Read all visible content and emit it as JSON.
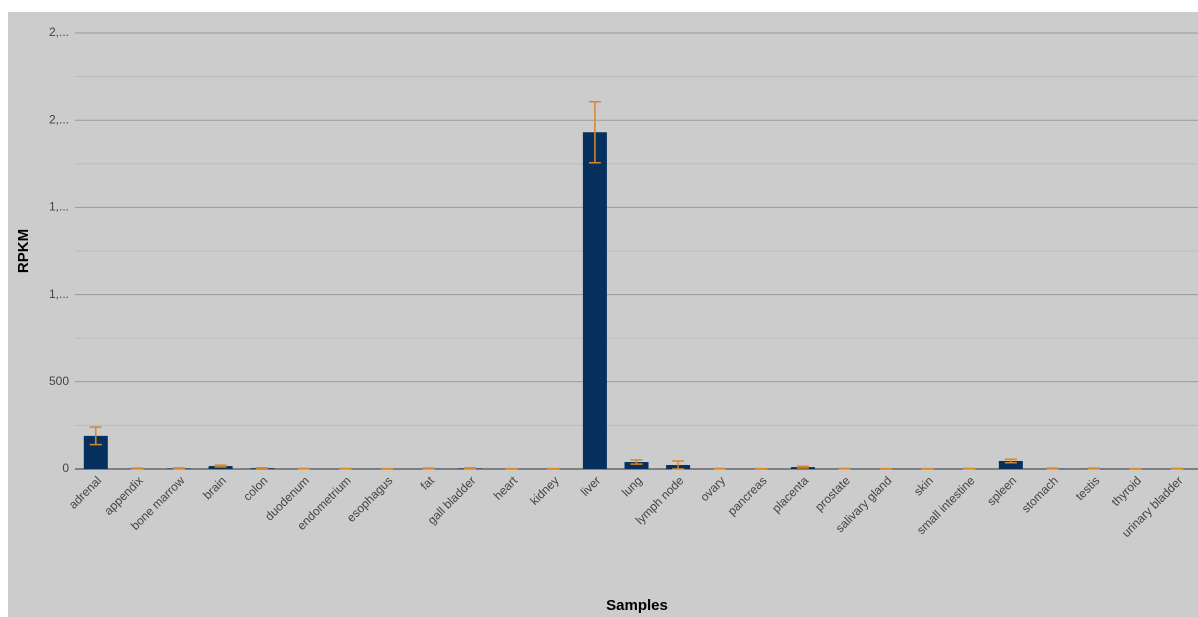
{
  "chart_data": {
    "type": "bar",
    "y_label": "RPKM",
    "x_label": "Samples",
    "categories": [
      "adrenal",
      "appendix",
      "bone marrow",
      "brain",
      "colon",
      "duodenum",
      "endometrium",
      "esophagus",
      "fat",
      "gall bladder",
      "heart",
      "kidney",
      "liver",
      "lung",
      "lymph node",
      "ovary",
      "pancreas",
      "placenta",
      "prostate",
      "salivary gland",
      "skin",
      "small intestine",
      "spleen",
      "stomach",
      "testis",
      "thyroid",
      "urinary bladder"
    ],
    "values": [
      190,
      3,
      4,
      17,
      5,
      2,
      2,
      1,
      3,
      4,
      1,
      1,
      1931,
      40,
      23,
      2,
      1,
      11,
      2,
      1,
      1,
      2,
      46,
      3,
      3,
      1,
      2
    ],
    "errors": [
      50,
      2,
      2,
      5,
      2,
      1,
      1,
      1,
      2,
      2,
      1,
      1,
      175,
      12,
      23,
      1,
      1,
      5,
      1,
      1,
      1,
      1,
      10,
      2,
      2,
      1,
      1
    ],
    "color": "#06315f",
    "error_color": "#d9862a",
    "ylim": [
      0,
      2500
    ],
    "yticks": [
      0,
      500,
      {
        "value": 1000,
        "label": "1,..."
      },
      {
        "value": 1500,
        "label": "1,..."
      },
      {
        "value": 2000,
        "label": "2,..."
      },
      {
        "value": 2500,
        "label": "2,..."
      }
    ],
    "minor_yticks": [
      250,
      750,
      1250,
      1750,
      2250
    ],
    "grid": true
  }
}
